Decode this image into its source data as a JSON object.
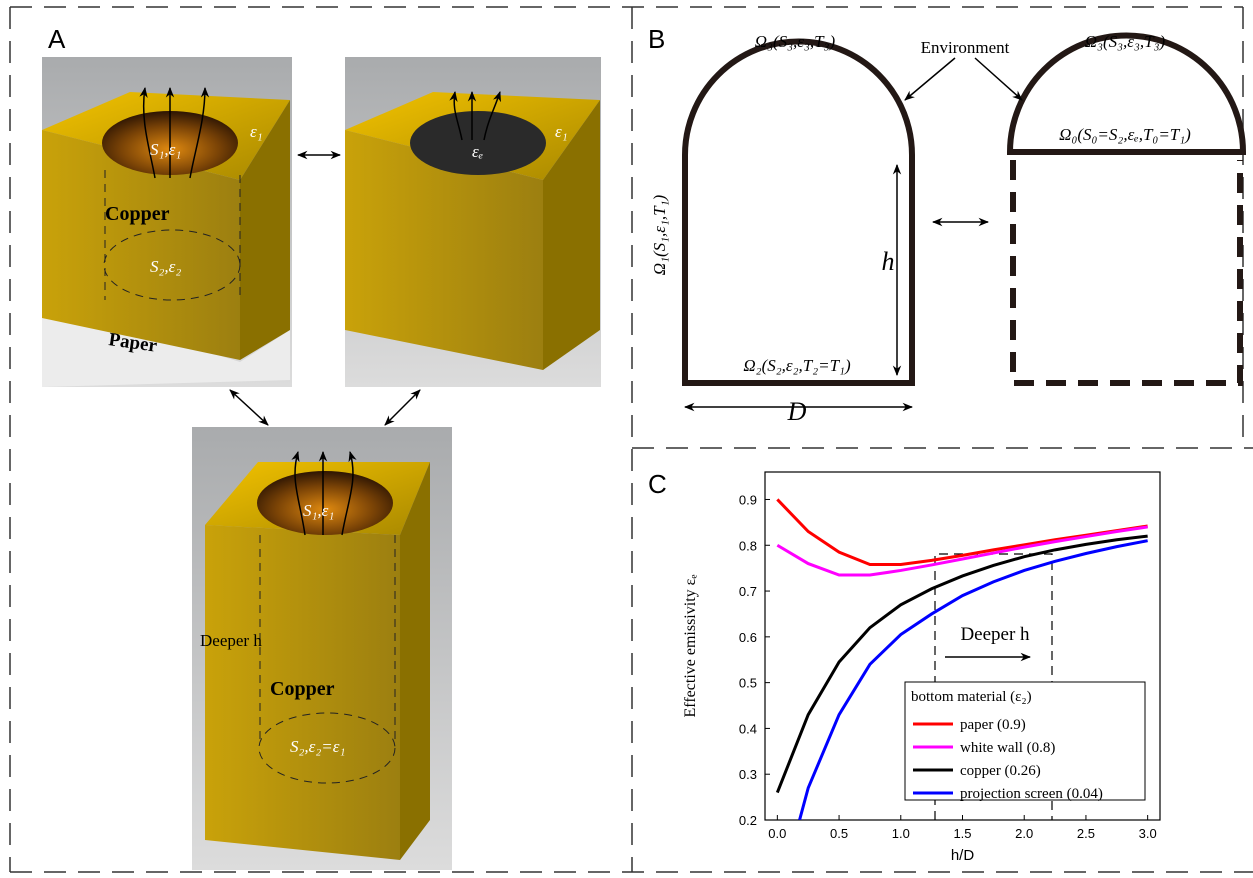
{
  "panel_a": {
    "label": "A",
    "texts": [
      "S₁,ε₁",
      "ε₁",
      "Copper",
      "S₂,ε₂",
      "Paper",
      "εₑ",
      "ε₁",
      "S₁,ε₁",
      "Deeper h",
      "Copper",
      "S₂,ε₂=ε₁"
    ]
  },
  "panel_b": {
    "label": "B",
    "texts": [
      "Ω₃(S₃,ε₃,T₃)",
      "Environment",
      "Ω₃(S₃,ε₃,T₃)",
      "Ω₀(S₀=S₂,εₑ,T₀=T₁)",
      "h",
      "Ω₁(S₁,ε₁,T₁)",
      "Ω₂(S₂,ε₂,T₂=T₁)",
      "D"
    ]
  },
  "chart_data": {
    "type": "line",
    "panel_label": "C",
    "xlabel": "h/D",
    "ylabel": "Effective emissivity εₑ",
    "annotation": "Deeper h",
    "legend_title": "bottom material (ε₂)",
    "legend": "lower right",
    "xlim": [
      -0.1,
      3.1
    ],
    "ylim": [
      0.2,
      0.96
    ],
    "xticks": [
      {
        "value": 0,
        "label": "0.0"
      },
      0.5,
      {
        "value": 1,
        "label": "1.0"
      },
      1.5,
      {
        "value": 2,
        "label": "2.0"
      },
      2.5,
      {
        "value": 3,
        "label": "3.0"
      }
    ],
    "yticks": [
      0.2,
      0.3,
      0.4,
      0.5,
      0.6,
      0.7,
      0.8,
      0.9
    ],
    "series": [
      {
        "name": "paper (0.9)",
        "color": "#ff0000",
        "x": [
          0,
          0.25,
          0.5,
          0.75,
          1,
          1.25,
          1.5,
          1.75,
          2,
          2.25,
          2.5,
          2.75,
          3
        ],
        "values": [
          0.9,
          0.83,
          0.785,
          0.758,
          0.758,
          0.767,
          0.778,
          0.79,
          0.801,
          0.812,
          0.822,
          0.832,
          0.842
        ]
      },
      {
        "name": "white wall (0.8)",
        "color": "#ff00ff",
        "x": [
          0,
          0.25,
          0.5,
          0.75,
          1,
          1.25,
          1.5,
          1.75,
          2,
          2.25,
          2.5,
          2.75,
          3
        ],
        "values": [
          0.8,
          0.76,
          0.735,
          0.735,
          0.745,
          0.757,
          0.77,
          0.783,
          0.796,
          0.808,
          0.819,
          0.83,
          0.84
        ]
      },
      {
        "name": "copper (0.26)",
        "color": "#000000",
        "x": [
          0,
          0.25,
          0.5,
          0.75,
          1,
          1.25,
          1.5,
          1.75,
          2,
          2.25,
          2.5,
          2.75,
          3
        ],
        "values": [
          0.26,
          0.43,
          0.545,
          0.62,
          0.67,
          0.705,
          0.733,
          0.756,
          0.775,
          0.79,
          0.802,
          0.812,
          0.82
        ]
      },
      {
        "name": "projection screen (0.04)",
        "color": "#0000ff",
        "x": [
          0.18,
          0.25,
          0.5,
          0.75,
          1,
          1.25,
          1.5,
          1.75,
          2,
          2.25,
          2.5,
          2.75,
          3
        ],
        "values": [
          0.2,
          0.27,
          0.43,
          0.54,
          0.605,
          0.65,
          0.69,
          0.72,
          0.745,
          0.765,
          0.782,
          0.797,
          0.81
        ]
      }
    ]
  }
}
